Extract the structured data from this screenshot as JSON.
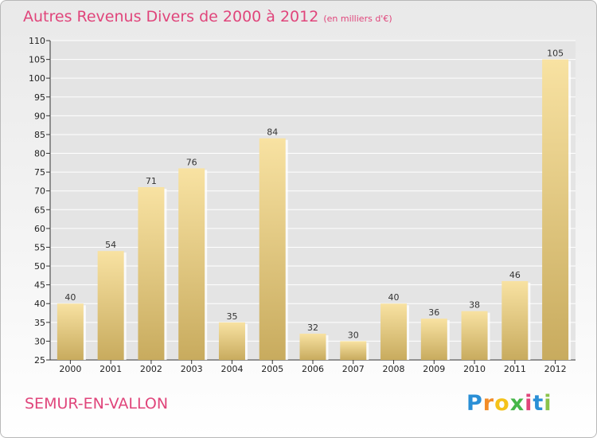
{
  "title": "Autres Revenus Divers de 2000 à 2012",
  "unit": "(en milliers d'€)",
  "place": "SEMUR-EN-VALLON",
  "logo": {
    "letters": [
      "P",
      "r",
      "o",
      "x",
      "i",
      "t",
      "i"
    ],
    "colors": [
      "#2a8fd6",
      "#f28c28",
      "#f4c21a",
      "#45b649",
      "#e0457b",
      "#2a8fd6",
      "#8bc34a"
    ]
  },
  "colors": {
    "title": "#e0457b",
    "bar_light": "#f8e2a2",
    "bar_dark": "#c8ab5e",
    "grid": "#ffffff"
  },
  "chart_data": {
    "type": "bar",
    "categories": [
      "2000",
      "2001",
      "2002",
      "2003",
      "2004",
      "2005",
      "2006",
      "2007",
      "2008",
      "2009",
      "2010",
      "2011",
      "2012"
    ],
    "values": [
      40,
      54,
      71,
      76,
      35,
      84,
      32,
      30,
      40,
      36,
      38,
      46,
      105
    ],
    "title": "Autres Revenus Divers de 2000 à 2012",
    "xlabel": "",
    "ylabel": "",
    "ylim": [
      25,
      110
    ],
    "yticks": [
      25,
      30,
      35,
      40,
      45,
      50,
      55,
      60,
      65,
      70,
      75,
      80,
      85,
      90,
      95,
      100,
      105,
      110
    ],
    "grid": true
  }
}
